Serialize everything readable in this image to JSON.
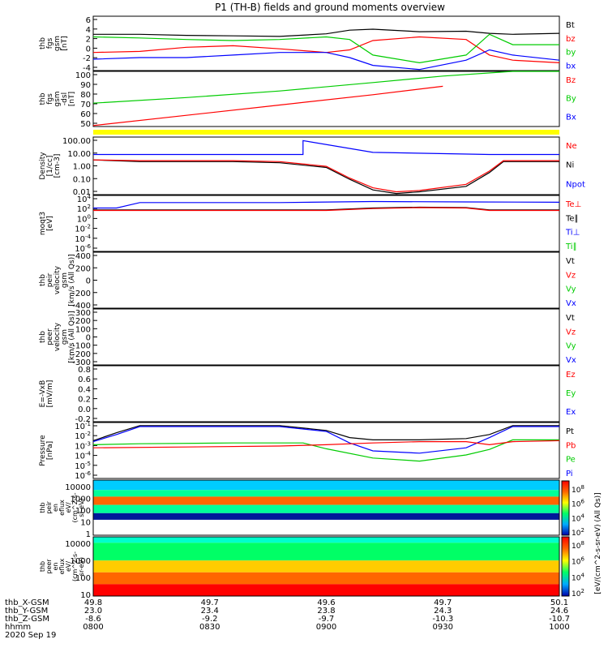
{
  "chart_data": {
    "type": "line",
    "title": "P1 (TH-B) fields and ground moments overview",
    "x_time_ticks": [
      "0800",
      "0830",
      "0900",
      "0930",
      "1000"
    ],
    "panels": [
      {
        "id": "fgs",
        "ylabel": [
          "thb",
          "fgs",
          "gsm",
          "[nT]"
        ],
        "yticks": [
          "6",
          "4",
          "2",
          "0",
          "-2",
          "-4"
        ],
        "ylim": [
          -4,
          6.5
        ],
        "legend": [
          {
            "label": "Bt",
            "color": "#000000"
          },
          {
            "label": "bz",
            "color": "#ff0000"
          },
          {
            "label": "by",
            "color": "#00cc00"
          },
          {
            "label": "bx",
            "color": "#0000ff"
          }
        ],
        "series": [
          {
            "x": [
              0,
              0.1,
              0.2,
              0.3,
              0.4,
              0.5,
              0.55,
              0.6,
              0.7,
              0.8,
              0.85,
              0.9,
              1.0
            ],
            "y": [
              3,
              3,
              2.8,
              2.7,
              2.6,
              3.1,
              3.8,
              4,
              3.5,
              3.6,
              3.2,
              3,
              3.2
            ],
            "color": "#000000"
          },
          {
            "x": [
              0,
              0.1,
              0.2,
              0.3,
              0.4,
              0.5,
              0.55,
              0.6,
              0.7,
              0.8,
              0.85,
              0.9,
              1.0
            ],
            "y": [
              -0.5,
              -0.3,
              0.5,
              0.8,
              0.2,
              -0.5,
              0,
              1.8,
              2.5,
              2,
              -1,
              -2,
              -2.5
            ],
            "color": "#ff0000"
          },
          {
            "x": [
              0,
              0.1,
              0.2,
              0.3,
              0.4,
              0.5,
              0.55,
              0.6,
              0.7,
              0.8,
              0.85,
              0.9,
              1.0
            ],
            "y": [
              2.5,
              2.3,
              2,
              1.8,
              2,
              2.5,
              2,
              -1,
              -2.5,
              -1,
              3,
              1,
              1
            ],
            "color": "#00cc00"
          },
          {
            "x": [
              0,
              0.1,
              0.2,
              0.3,
              0.4,
              0.5,
              0.55,
              0.6,
              0.7,
              0.8,
              0.85,
              0.9,
              1.0
            ],
            "y": [
              -1.8,
              -1.5,
              -1.5,
              -1,
              -0.5,
              -0.5,
              -1.5,
              -3,
              -3.8,
              -2,
              0,
              -1,
              -2
            ],
            "color": "#0000ff"
          }
        ]
      },
      {
        "id": "fgs_dsl",
        "ylabel": [
          "thb",
          "fgs",
          "gsm",
          "-dsl",
          "[nT]"
        ],
        "yticks": [
          "100",
          "90",
          "80",
          "70",
          "60",
          "50"
        ],
        "ylim": [
          43,
          102
        ],
        "legend": [
          {
            "label": "Bz",
            "color": "#ff0000"
          },
          {
            "label": "By",
            "color": "#00cc00"
          },
          {
            "label": "Bx",
            "color": "#0000ff"
          }
        ],
        "series": [
          {
            "x": [
              0,
              0.2,
              0.4,
              0.6,
              0.75,
              0.9,
              1.0
            ],
            "y": [
              68,
              74,
              81,
              90,
              97,
              102,
              104
            ],
            "color": "#00cc00"
          },
          {
            "x": [
              0,
              0.2,
              0.4,
              0.6,
              0.75
            ],
            "y": [
              44,
              55,
              66,
              77,
              86
            ],
            "color": "#ff0000"
          }
        ]
      },
      {
        "id": "density",
        "ylabel": [
          "Density",
          "[1/cc]",
          "[cm-3]"
        ],
        "yticks": [
          "100.00",
          "10.00",
          "1.00",
          "0.10",
          "0.01"
        ],
        "log": true,
        "ylim": [
          0.004,
          300
        ],
        "legend": [
          {
            "label": "Ne",
            "color": "#ff0000"
          },
          {
            "label": "Ni",
            "color": "#000000"
          },
          {
            "label": "Npot",
            "color": "#0000ff"
          }
        ],
        "series": [
          {
            "x": [
              0,
              0.01,
              0.45,
              0.45,
              0.6,
              0.85,
              0.9,
              0.95,
              1.0
            ],
            "y": [
              10,
              10,
              10,
              150,
              15,
              10,
              10,
              10,
              10
            ],
            "color": "#0000ff"
          },
          {
            "x": [
              0,
              0.1,
              0.3,
              0.4,
              0.5,
              0.55,
              0.6,
              0.65,
              0.7,
              0.8,
              0.85,
              0.88,
              0.95,
              1.0
            ],
            "y": [
              3.5,
              2.5,
              2.5,
              2,
              0.8,
              0.08,
              0.01,
              0.005,
              0.007,
              0.02,
              0.3,
              2.5,
              2.5,
              2.5
            ],
            "color": "#000000"
          },
          {
            "x": [
              0,
              0.1,
              0.3,
              0.4,
              0.5,
              0.55,
              0.6,
              0.65,
              0.7,
              0.8,
              0.85,
              0.88,
              0.95,
              1.0
            ],
            "y": [
              3.5,
              3,
              3,
              2.5,
              1,
              0.1,
              0.015,
              0.007,
              0.009,
              0.03,
              0.4,
              3,
              3,
              3
            ],
            "color": "#ff0000"
          }
        ]
      },
      {
        "id": "temperature",
        "ylabel": [
          "moqt3",
          "[eV]"
        ],
        "yticks": [
          "10",
          "10",
          "10",
          "10",
          "10",
          "10"
        ],
        "ytick_exps": [
          "4",
          "2",
          "0",
          "-2",
          "-4",
          "-6"
        ],
        "log": true,
        "ylim": [
          1e-07,
          100000.0
        ],
        "legend": [
          {
            "label": "Te⊥",
            "color": "#ff0000"
          },
          {
            "label": "Te∥",
            "color": "#000000"
          },
          {
            "label": "Ti⊥",
            "color": "#0000ff"
          },
          {
            "label": "Ti∥",
            "color": "#00cc00"
          }
        ],
        "series": [
          {
            "x": [
              0,
              0.05,
              0.1,
              0.4,
              0.6,
              0.8,
              1.0
            ],
            "y": [
              200,
              200,
              3000,
              3000,
              5000,
              4000,
              3500
            ],
            "color": "#0000ff"
          },
          {
            "x": [
              0,
              0.3,
              0.5,
              0.6,
              0.7,
              0.8,
              0.85,
              0.9,
              1.0
            ],
            "y": [
              80,
              80,
              80,
              200,
              300,
              250,
              80,
              80,
              80
            ],
            "color": "#000000"
          },
          {
            "x": [
              0,
              0.3,
              0.5,
              0.6,
              0.7,
              0.8,
              0.85,
              0.9,
              1.0
            ],
            "y": [
              60,
              60,
              60,
              150,
              250,
              200,
              60,
              60,
              60
            ],
            "color": "#ff0000"
          }
        ]
      },
      {
        "id": "peir_vel",
        "ylabel": [
          "thb",
          "peir",
          "velocity",
          "gsm",
          "[km/s (All Qs)]"
        ],
        "yticks": [
          "400",
          "200",
          "0",
          "-200",
          "-400"
        ],
        "ylim": [
          -420,
          420
        ],
        "legend": [
          {
            "label": "Vt",
            "color": "#000000"
          },
          {
            "label": "Vz",
            "color": "#ff0000"
          },
          {
            "label": "Vy",
            "color": "#00cc00"
          },
          {
            "label": "Vx",
            "color": "#0000ff"
          }
        ],
        "series": []
      },
      {
        "id": "peer_vel",
        "ylabel": [
          "thb",
          "peer",
          "velocity",
          "gsm",
          "[km/s (All Qs)]"
        ],
        "yticks": [
          "300",
          "200",
          "100",
          "0",
          "-100",
          "-200",
          "-300"
        ],
        "ylim": [
          -310,
          310
        ],
        "legend": [
          {
            "label": "Vt",
            "color": "#000000"
          },
          {
            "label": "Vz",
            "color": "#ff0000"
          },
          {
            "label": "Vy",
            "color": "#00cc00"
          },
          {
            "label": "Vx",
            "color": "#0000ff"
          }
        ],
        "series": []
      },
      {
        "id": "efield",
        "ylabel": [
          "E=-VxB",
          "[mV/m]"
        ],
        "yticks": [
          "0.8",
          "0.6",
          "0.4",
          "0.2",
          "0.0",
          "-0.2"
        ],
        "ylim": [
          -0.25,
          0.85
        ],
        "legend": [
          {
            "label": "Ez",
            "color": "#ff0000"
          },
          {
            "label": "Ey",
            "color": "#00cc00"
          },
          {
            "label": "Ex",
            "color": "#0000ff"
          }
        ],
        "series": []
      },
      {
        "id": "pressure",
        "ylabel": [
          "Pressure",
          "[nPa]"
        ],
        "yticks": [
          "10",
          "10",
          "10",
          "10",
          "10",
          "10"
        ],
        "ytick_exps": [
          "-1",
          "-2",
          "-3",
          "-4",
          "-5",
          "-6"
        ],
        "log": true,
        "ylim": [
          1e-06,
          0.3
        ],
        "legend": [
          {
            "label": "Pt",
            "color": "#000000"
          },
          {
            "label": "Pb",
            "color": "#ff0000"
          },
          {
            "label": "Pe",
            "color": "#00cc00"
          },
          {
            "label": "Pi",
            "color": "#0000ff"
          }
        ],
        "series": [
          {
            "x": [
              0,
              0.05,
              0.1,
              0.4,
              0.5,
              0.55,
              0.6,
              0.7,
              0.8,
              0.85,
              0.9,
              1.0
            ],
            "y": [
              0.005,
              0.03,
              0.15,
              0.15,
              0.05,
              0.01,
              0.006,
              0.006,
              0.008,
              0.02,
              0.15,
              0.15
            ],
            "color": "#000000"
          },
          {
            "x": [
              0,
              0.05,
              0.1,
              0.4,
              0.5,
              0.55,
              0.6,
              0.7,
              0.8,
              0.85,
              0.9,
              1.0
            ],
            "y": [
              0.004,
              0.02,
              0.12,
              0.12,
              0.04,
              0.003,
              0.0005,
              0.0003,
              0.001,
              0.01,
              0.12,
              0.12
            ],
            "color": "#0000ff"
          },
          {
            "x": [
              0,
              0.1,
              0.3,
              0.45,
              0.5,
              0.6,
              0.7,
              0.8,
              0.85,
              0.9,
              1.0
            ],
            "y": [
              0.002,
              0.0025,
              0.003,
              0.003,
              0.0008,
              0.0001,
              5e-05,
              0.0002,
              0.0007,
              0.006,
              0.006
            ],
            "color": "#00cc00"
          },
          {
            "x": [
              0,
              0.2,
              0.4,
              0.5,
              0.6,
              0.7,
              0.8,
              0.85,
              0.9,
              1.0
            ],
            "y": [
              0.001,
              0.0012,
              0.0015,
              0.002,
              0.003,
              0.004,
              0.004,
              0.002,
              0.004,
              0.005
            ],
            "color": "#ff0000"
          }
        ]
      }
    ],
    "spectrograms": [
      {
        "id": "peir_en",
        "ylabel": [
          "thb",
          "peir",
          "en",
          "eflux",
          "eV/",
          "(cm^2-s-",
          "sr-eV)"
        ],
        "yticks": [
          "10000",
          "1000",
          "100",
          "10",
          "1"
        ]
      },
      {
        "id": "peer_en",
        "ylabel": [
          "thb",
          "peer",
          "en",
          "eflux",
          "eV/",
          "(cm^2-s-",
          "sr-eV)"
        ],
        "yticks": [
          "10000",
          "1000",
          "100",
          "10"
        ]
      }
    ],
    "colorbar": {
      "label": "[eV/(cm^2-s-sr-eV) (All Qs)]",
      "ticks_upper": [
        "8",
        "6",
        "4",
        "2"
      ],
      "ticks_lower": [
        "8",
        "6",
        "4",
        "2"
      ],
      "tick_base": "10"
    },
    "ephemeris": {
      "labels": [
        "thb_X-GSM",
        "thb_Y-GSM",
        "thb_Z-GSM",
        "hhmm",
        "2020 Sep 19"
      ],
      "columns": [
        [
          "49.8",
          "23.0",
          "-8.6",
          "0800"
        ],
        [
          "49.7",
          "23.4",
          "-9.2",
          "0830"
        ],
        [
          "49.6",
          "23.8",
          "-9.7",
          "0900"
        ],
        [
          "49.7",
          "24.3",
          "-10.3",
          "0930"
        ],
        [
          "50.1",
          "24.6",
          "-10.7",
          "1000"
        ]
      ]
    }
  }
}
